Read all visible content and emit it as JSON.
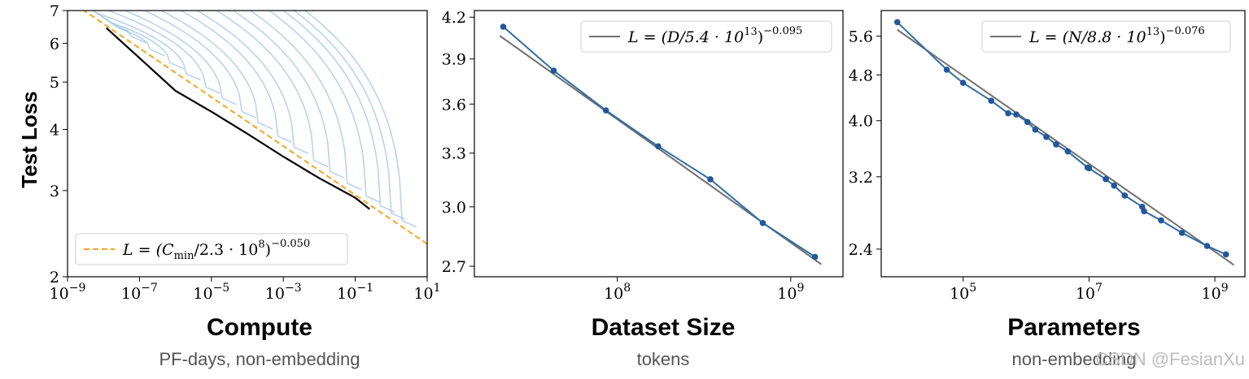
{
  "watermark": "CSDN @FesianXu",
  "ylabel_shared": "Test Loss",
  "colors": {
    "curve_light": "#a9c8e6",
    "envelope": "#000000",
    "fit_orange": "#f5a623",
    "fit_gray": "#707070",
    "series_blue": "#2f6ca8",
    "marker": "#24569a"
  },
  "chart_data": [
    {
      "type": "line",
      "title": "Compute",
      "subtitle": "PF-days, non-embedding",
      "xlabel": "Compute",
      "ylabel": "Test Loss",
      "x_scale": "log",
      "y_scale": "log",
      "xlim": [
        1e-09,
        10
      ],
      "ylim": [
        2,
        7
      ],
      "x_ticks": [
        {
          "value": 1e-09,
          "base": "10",
          "exp": "−9"
        },
        {
          "value": 1e-07,
          "base": "10",
          "exp": "−7"
        },
        {
          "value": 1e-05,
          "base": "10",
          "exp": "−5"
        },
        {
          "value": 0.001,
          "base": "10",
          "exp": "−3"
        },
        {
          "value": 0.1,
          "base": "10",
          "exp": "−1"
        },
        {
          "value": 10,
          "base": "10",
          "exp": "1"
        }
      ],
      "y_ticks": [
        {
          "value": 2,
          "label": "2"
        },
        {
          "value": 3,
          "label": "3"
        },
        {
          "value": 4,
          "label": "4"
        },
        {
          "value": 5,
          "label": "5"
        },
        {
          "value": 6,
          "label": "6"
        },
        {
          "value": 7,
          "label": "7"
        }
      ],
      "fit": {
        "scale": 230000000.0,
        "exponent": -0.05,
        "x_range": [
          1e-09,
          10
        ]
      },
      "legend": {
        "position": "lower-left",
        "prefix": "L = (C",
        "sub": "min",
        "mid": "/2.3 · 10",
        "sup1": "8",
        "close": ")",
        "sup2": "−0.050"
      },
      "frontier": [
        [
          1.2e-08,
          6.45
        ],
        [
          1e-07,
          5.6
        ],
        [
          1e-06,
          4.8
        ],
        [
          1e-05,
          4.35
        ],
        [
          0.0001,
          3.92
        ],
        [
          0.001,
          3.52
        ],
        [
          0.01,
          3.18
        ],
        [
          0.1,
          2.9
        ],
        [
          0.25,
          2.75
        ]
      ],
      "training_curves": [
        {
          "start_loss": 7.0,
          "end_x": 2e-08
        },
        {
          "start_loss": 7.0,
          "end_x": 6e-08
        },
        {
          "start_loss": 7.0,
          "end_x": 2e-07
        },
        {
          "start_loss": 7.0,
          "end_x": 7e-07
        },
        {
          "start_loss": 7.0,
          "end_x": 2e-06
        },
        {
          "start_loss": 7.0,
          "end_x": 7e-06
        },
        {
          "start_loss": 7.0,
          "end_x": 2e-05
        },
        {
          "start_loss": 7.0,
          "end_x": 7e-05
        },
        {
          "start_loss": 7.0,
          "end_x": 0.0002
        },
        {
          "start_loss": 7.0,
          "end_x": 0.0007
        },
        {
          "start_loss": 7.0,
          "end_x": 0.002
        },
        {
          "start_loss": 7.0,
          "end_x": 0.007
        },
        {
          "start_loss": 7.0,
          "end_x": 0.02
        },
        {
          "start_loss": 7.0,
          "end_x": 0.06
        },
        {
          "start_loss": 7.0,
          "end_x": 0.2
        },
        {
          "start_loss": 7.0,
          "end_x": 0.5
        },
        {
          "start_loss": 7.0,
          "end_x": 1.0
        },
        {
          "start_loss": 7.0,
          "end_x": 2.0
        }
      ]
    },
    {
      "type": "line",
      "title": "Dataset Size",
      "subtitle": "tokens",
      "xlabel": "Dataset Size",
      "x_scale": "log",
      "y_scale": "log",
      "xlim": [
        15000000.0,
        2000000000.0
      ],
      "ylim": [
        2.65,
        4.25
      ],
      "x_ticks": [
        {
          "value": 100000000.0,
          "base": "10",
          "exp": "8"
        },
        {
          "value": 1000000000.0,
          "base": "10",
          "exp": "9"
        }
      ],
      "y_ticks": [
        {
          "value": 2.7,
          "label": "2.7"
        },
        {
          "value": 3.0,
          "label": "3.0"
        },
        {
          "value": 3.3,
          "label": "3.3"
        },
        {
          "value": 3.6,
          "label": "3.6"
        },
        {
          "value": 3.9,
          "label": "3.9"
        },
        {
          "value": 4.2,
          "label": "4.2"
        }
      ],
      "fit": {
        "scale": 54000000000000.0,
        "exponent": -0.095,
        "x_range": [
          21000000.0,
          1500000000.0
        ]
      },
      "legend": {
        "position": "upper-right",
        "prefix": "L = (D/5.4 · 10",
        "sup1": "13",
        "close": ")",
        "sup2": "−0.095"
      },
      "series": [
        {
          "x": [
            22000000.0,
            43000000.0,
            86000000.0,
            172000000.0,
            344000000.0,
            690000000.0,
            1380000000.0
          ],
          "y": [
            4.13,
            3.82,
            3.56,
            3.34,
            3.15,
            2.915,
            2.745
          ]
        }
      ]
    },
    {
      "type": "line",
      "title": "Parameters",
      "subtitle": "non-embedding",
      "xlabel": "Parameters",
      "x_scale": "log",
      "y_scale": "log",
      "xlim": [
        5000,
        3000000000.0
      ],
      "ylim": [
        2.15,
        6.2
      ],
      "x_ticks": [
        {
          "value": 100000.0,
          "base": "10",
          "exp": "5"
        },
        {
          "value": 10000000.0,
          "base": "10",
          "exp": "7"
        },
        {
          "value": 1000000000.0,
          "base": "10",
          "exp": "9"
        }
      ],
      "y_ticks": [
        {
          "value": 2.4,
          "label": "2.4"
        },
        {
          "value": 3.2,
          "label": "3.2"
        },
        {
          "value": 4.0,
          "label": "4.0"
        },
        {
          "value": 4.8,
          "label": "4.8"
        },
        {
          "value": 5.6,
          "label": "5.6"
        }
      ],
      "fit": {
        "scale": 88000000000000.0,
        "exponent": -0.076,
        "x_range": [
          9000,
          2000000000.0
        ]
      },
      "legend": {
        "position": "upper-right",
        "prefix": "L = (N/8.8 · 10",
        "sup1": "13",
        "close": ")",
        "sup2": "−0.076"
      },
      "series": [
        {
          "x": [
            9000,
            55000,
            100000,
            280000,
            520000,
            700000,
            1050000.0,
            1400000.0,
            2100000.0,
            3000000.0,
            4600000.0,
            9500000.0,
            10000000.0,
            18500000.0,
            25000000.0,
            37000000.0,
            70000000.0,
            75000000.0,
            140000000.0,
            300000000.0,
            750000000.0,
            1500000000.0
          ],
          "y": [
            5.92,
            4.9,
            4.65,
            4.33,
            4.12,
            4.1,
            3.98,
            3.86,
            3.75,
            3.64,
            3.54,
            3.32,
            3.31,
            3.17,
            3.09,
            2.97,
            2.84,
            2.79,
            2.69,
            2.56,
            2.43,
            2.35
          ]
        }
      ]
    }
  ]
}
